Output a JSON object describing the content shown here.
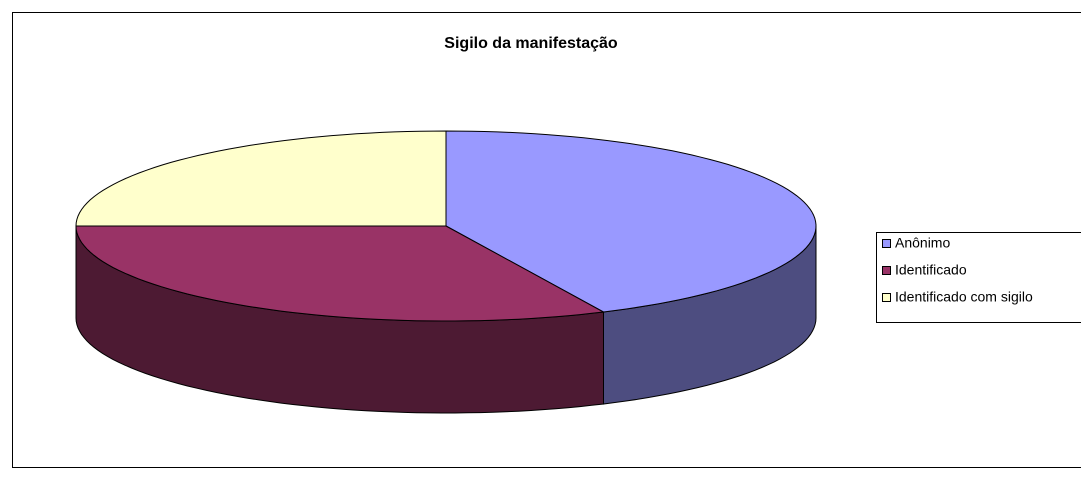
{
  "chart_data": {
    "type": "pie3d",
    "title": "Sigilo da manifestação",
    "series": [
      {
        "name": "Anônimo",
        "color": "#9999ff",
        "values": [
          43
        ]
      },
      {
        "name": "Identificado",
        "color": "#993366",
        "values": [
          32
        ]
      },
      {
        "name": "Identificado com sigilo",
        "color": "#ffffcc",
        "values": [
          25
        ]
      }
    ],
    "legend": "right"
  }
}
